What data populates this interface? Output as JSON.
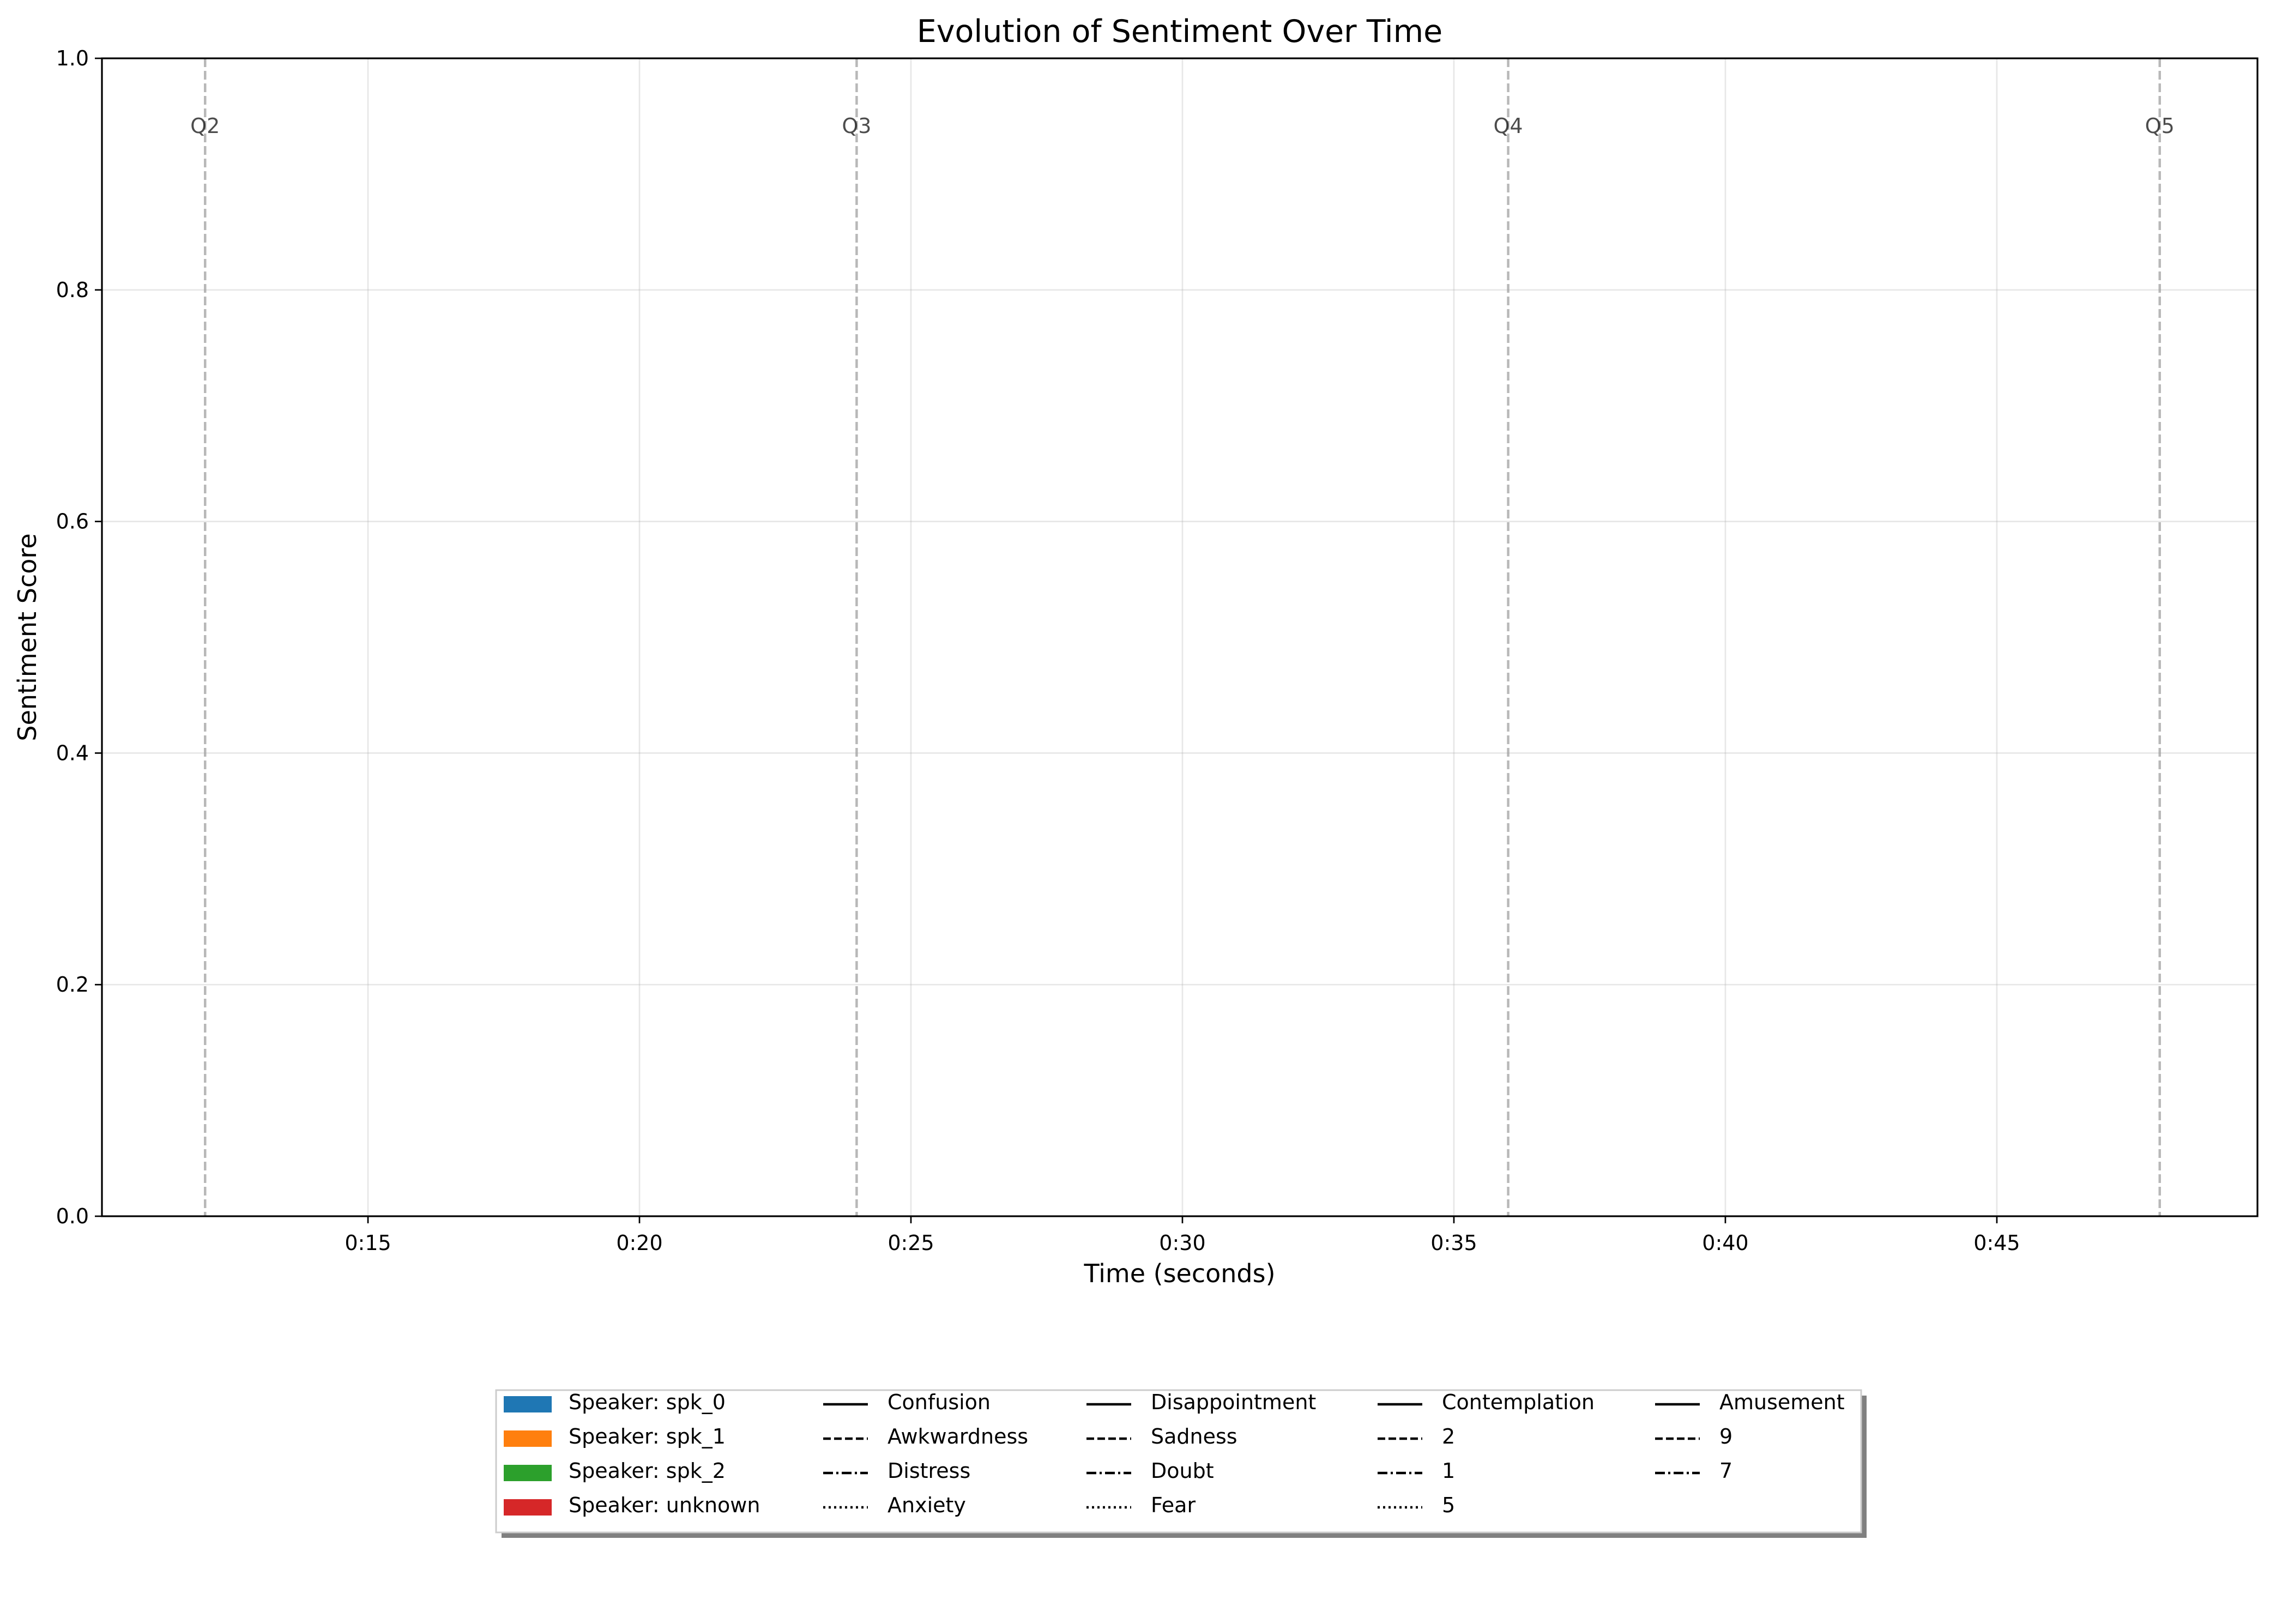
{
  "chart_data": {
    "type": "line",
    "title": "Evolution of Sentiment Over Time",
    "xlabel": "Time (seconds)",
    "ylabel": "Sentiment Score",
    "xlim": [
      10.1,
      49.8
    ],
    "ylim": [
      0,
      1
    ],
    "x_ticks": [
      {
        "value": 15,
        "label": "0:15"
      },
      {
        "value": 20,
        "label": "0:20"
      },
      {
        "value": 25,
        "label": "0:25"
      },
      {
        "value": 30,
        "label": "0:30"
      },
      {
        "value": 35,
        "label": "0:35"
      },
      {
        "value": 40,
        "label": "0:40"
      },
      {
        "value": 45,
        "label": "0:45"
      }
    ],
    "y_ticks": [
      {
        "value": 0.0,
        "label": "0.0"
      },
      {
        "value": 0.2,
        "label": "0.2"
      },
      {
        "value": 0.4,
        "label": "0.4"
      },
      {
        "value": 0.6,
        "label": "0.6"
      },
      {
        "value": 0.8,
        "label": "0.8"
      },
      {
        "value": 1.0,
        "label": "1.0"
      }
    ],
    "grid": true,
    "question_markers": [
      {
        "x": 12.0,
        "label": "Q2"
      },
      {
        "x": 24.0,
        "label": "Q3"
      },
      {
        "x": 36.0,
        "label": "Q4"
      },
      {
        "x": 48.0,
        "label": "Q5"
      }
    ],
    "series": [],
    "legend": {
      "placement": "bottom-center",
      "speakers": [
        {
          "label": "Speaker: spk_0",
          "color": "#1f77b4"
        },
        {
          "label": "Speaker: spk_1",
          "color": "#ff7f0e"
        },
        {
          "label": "Speaker: spk_2",
          "color": "#2ca02c"
        },
        {
          "label": "Speaker: unknown",
          "color": "#d62728"
        }
      ],
      "emotion_columns": [
        [
          {
            "label": "Confusion",
            "style": "solid"
          },
          {
            "label": "Awkwardness",
            "style": "dashed"
          },
          {
            "label": "Distress",
            "style": "dashdot"
          },
          {
            "label": "Anxiety",
            "style": "dotted"
          }
        ],
        [
          {
            "label": "Disappointment",
            "style": "solid"
          },
          {
            "label": "Sadness",
            "style": "dashed"
          },
          {
            "label": "Doubt",
            "style": "dashdot"
          },
          {
            "label": "Fear",
            "style": "dotted"
          }
        ],
        [
          {
            "label": "Contemplation",
            "style": "solid"
          },
          {
            "label": "2",
            "style": "dashed"
          },
          {
            "label": "1",
            "style": "dashdot"
          },
          {
            "label": "5",
            "style": "dotted"
          }
        ],
        [
          {
            "label": "Amusement",
            "style": "solid"
          },
          {
            "label": "9",
            "style": "dashed"
          },
          {
            "label": "7",
            "style": "dashdot"
          }
        ]
      ]
    }
  }
}
